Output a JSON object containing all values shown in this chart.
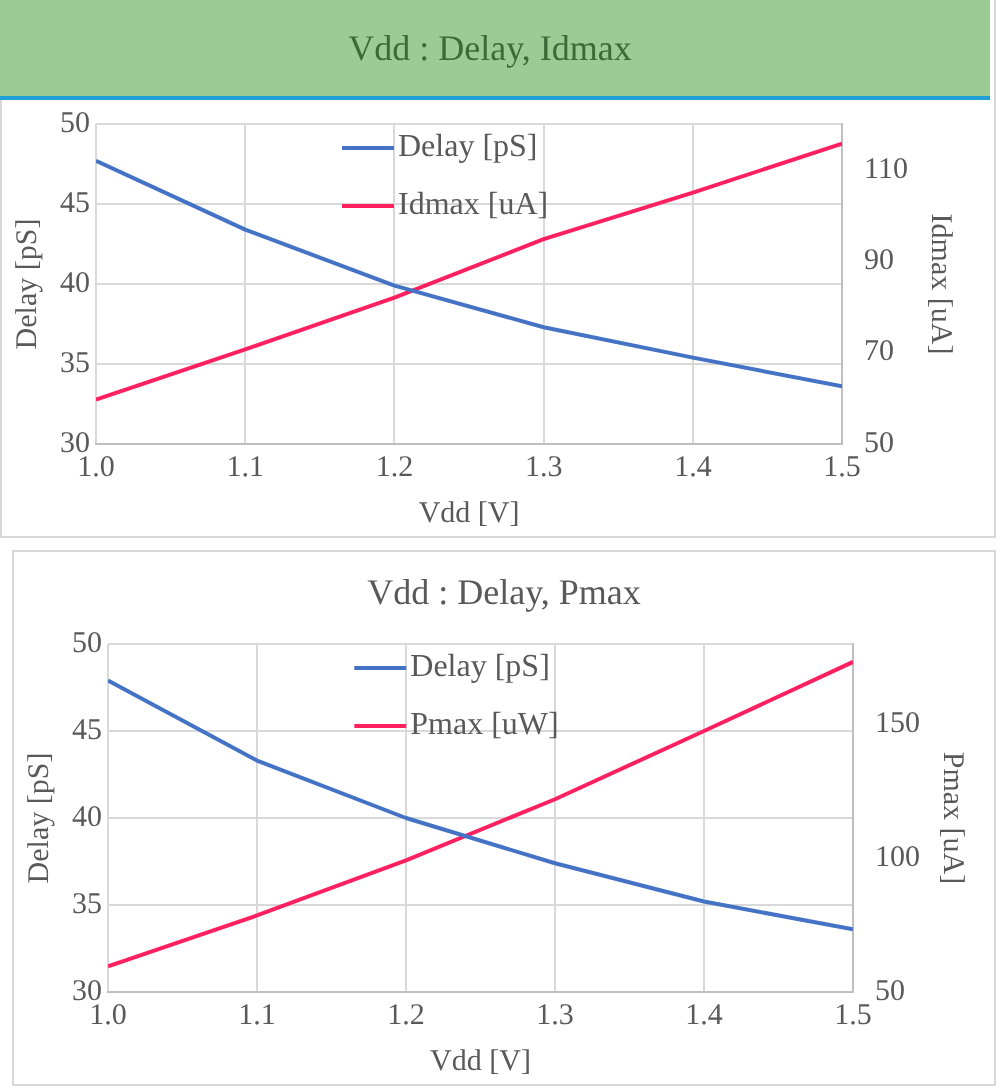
{
  "chart_data": [
    {
      "type": "line",
      "title": "Vdd : Delay, Idmax",
      "xlabel": "Vdd [V]",
      "ylabel": "Delay [pS]",
      "y2label": "Idmax [uA]",
      "x": [
        1.0,
        1.1,
        1.2,
        1.3,
        1.4,
        1.5
      ],
      "xlim": [
        1.0,
        1.5
      ],
      "xticks": [
        {
          "value": 1.0,
          "label": "1.0"
        },
        1.1,
        1.2,
        1.3,
        1.4,
        1.5
      ],
      "ylim": [
        30,
        50
      ],
      "yticks": [
        30,
        35,
        40,
        45,
        50
      ],
      "y2lim": [
        50,
        120
      ],
      "y2ticks": [
        50,
        70,
        90,
        110
      ],
      "grid": true,
      "legend": "top",
      "marker": "none",
      "line_style": "solid",
      "series": [
        {
          "name": "Delay [pS]",
          "color": "#4472c4",
          "values": [
            47.7,
            43.4,
            39.9,
            37.3,
            35.4,
            33.6
          ]
        },
        {
          "name": "Idmax [uA]",
          "color": "#ff2060",
          "axis": "y2",
          "values": [
            59.7,
            70.7,
            82,
            94.8,
            105,
            115.7
          ]
        }
      ]
    },
    {
      "type": "line",
      "title": "Vdd : Delay, Pmax",
      "xlabel": "Vdd [V]",
      "ylabel": "Delay [pS]",
      "y2label": "Pmax [uA]",
      "x": [
        1.0,
        1.1,
        1.2,
        1.3,
        1.4,
        1.5
      ],
      "xlim": [
        1.0,
        1.5
      ],
      "xticks": [
        {
          "value": 1.0,
          "label": "1.0"
        },
        1.1,
        1.2,
        1.3,
        1.4,
        1.5
      ],
      "ylim": [
        30,
        50
      ],
      "yticks": [
        30,
        35,
        40,
        45,
        50
      ],
      "y2lim": [
        50,
        180
      ],
      "y2ticks": [
        50,
        100,
        150
      ],
      "grid": true,
      "legend": "top",
      "marker": "none",
      "line_style": "solid",
      "series": [
        {
          "name": "Delay [pS]",
          "color": "#4472c4",
          "values": [
            47.9,
            43.3,
            40.0,
            37.4,
            35.2,
            33.6
          ]
        },
        {
          "name": "Pmax [uW]",
          "color": "#ff2060",
          "axis": "y2",
          "values": [
            59.6,
            78.6,
            99.2,
            122,
            147.5,
            173.3
          ]
        }
      ]
    }
  ]
}
